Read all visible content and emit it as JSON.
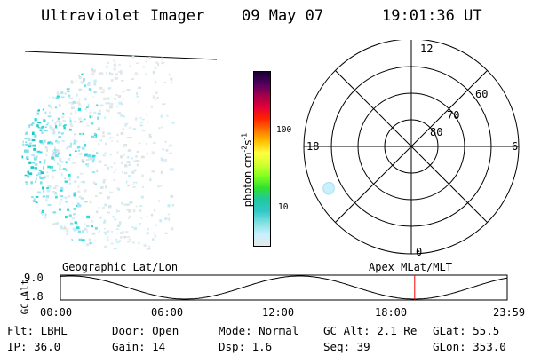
{
  "header": {
    "instrument": "Ultraviolet Imager",
    "date": "09 May 07",
    "time": "19:01:36 UT"
  },
  "colorbar": {
    "unit_main": "photon cm",
    "unit_exp1": "-2",
    "unit_s": "s",
    "unit_exp2": "-1",
    "ticks": [
      "100",
      "10"
    ],
    "colors": [
      "#e8e8e8",
      "#c8f0ff",
      "#80e0e0",
      "#30c8c8",
      "#20c8a0",
      "#30e030",
      "#80ff20",
      "#d0ff30",
      "#ffff40",
      "#ffc000",
      "#ff7000",
      "#ff2000",
      "#e0003a",
      "#a0004a",
      "#500060",
      "#180030"
    ]
  },
  "polar": {
    "mlt_labels": [
      "12",
      "18",
      "6",
      "0"
    ],
    "mlat_labels": [
      "80",
      "70",
      "60"
    ]
  },
  "timeline": {
    "left_title": "Geographic Lat/Lon",
    "right_title": "Apex MLat/MLT",
    "ylabel": "GC Alt",
    "y_ticks": [
      "9.0",
      "1.8"
    ],
    "x_ticks": [
      "00:00",
      "06:00",
      "12:00",
      "18:00",
      "23:59"
    ],
    "marker_time_hours": 19.027,
    "marker_color": "#ff0000"
  },
  "status": {
    "flt": "Flt: LBHL",
    "ip": "IP: 36.0",
    "door": "Door: Open",
    "gain": "Gain: 14",
    "mode": "Mode: Normal",
    "dsp": "Dsp:    1.6",
    "gcalt": "GC Alt: 2.1 Re",
    "seq": "Seq: 39",
    "glat": "GLat:  55.5",
    "glon": "GLon: 353.0"
  }
}
